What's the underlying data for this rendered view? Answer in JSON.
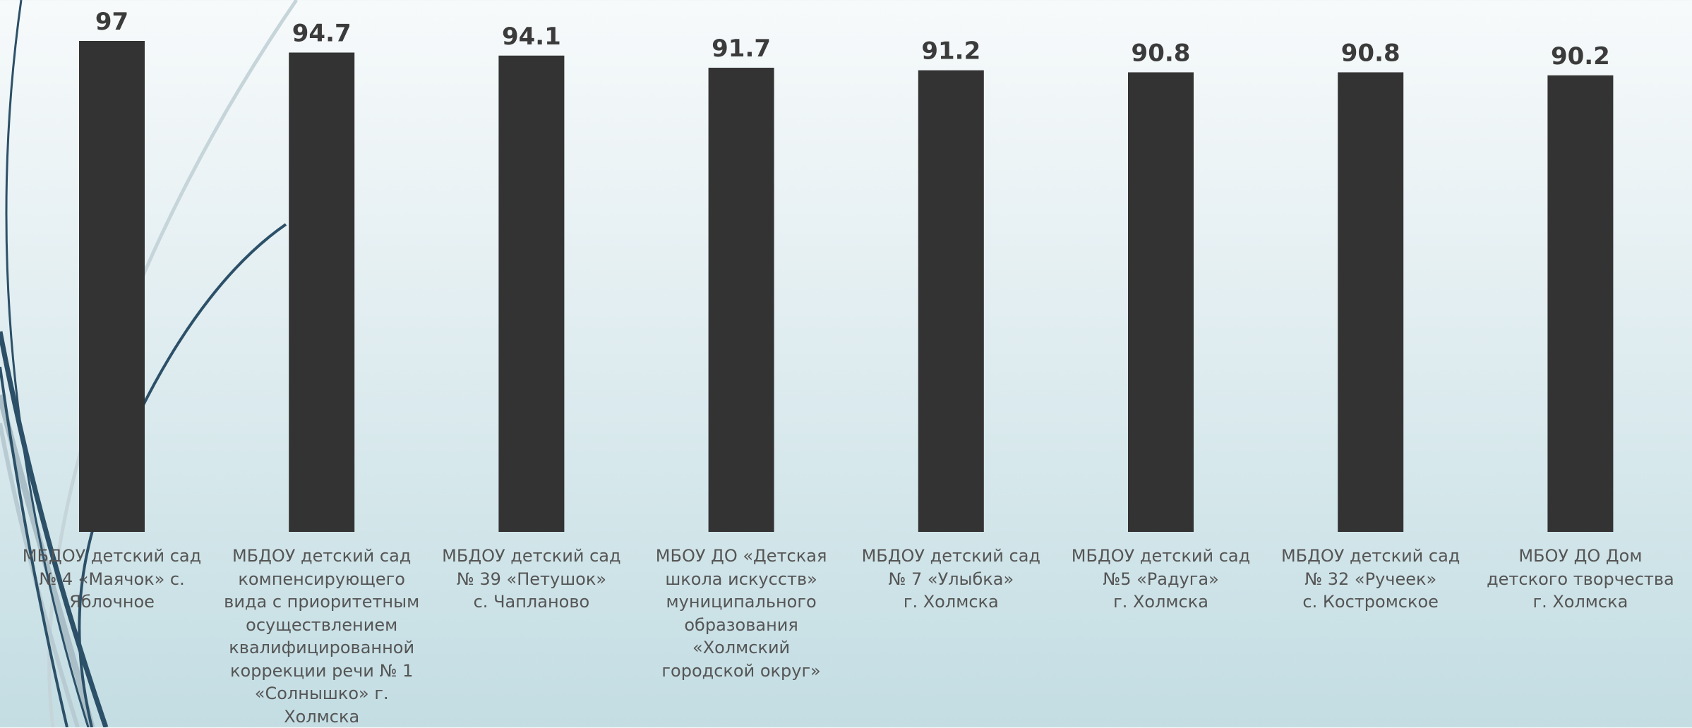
{
  "chart_data": {
    "type": "bar",
    "categories": [
      "МБДОУ детский сад\n№ 4 «Маячок» с.\nЯблочное",
      "МБДОУ детский сад\nкомпенсирующего\nвида с приоритетным\nосуществлением\nквалифицированной\nкоррекции речи № 1\n«Солнышко» г.\nХолмска",
      "МБДОУ детский сад\n№ 39 «Петушок»\nс. Чапланово",
      "МБОУ ДО «Детская\nшкола искусств»\nмуниципального\nобразования\n«Холмский\nгородской округ»",
      "МБДОУ детский сад\n№ 7 «Улыбка»\nг. Холмска",
      "МБДОУ детский сад\n№5 «Радуга»\nг. Холмска",
      "МБДОУ детский сад\n№ 32 «Ручеек»\nс. Костромское",
      "МБОУ ДО Дом\nдетского творчества\nг. Холмска"
    ],
    "values": [
      97,
      94.7,
      94.1,
      91.7,
      91.2,
      90.8,
      90.8,
      90.2
    ],
    "value_labels": [
      "97",
      "94.7",
      "94.1",
      "91.7",
      "91.2",
      "90.8",
      "90.8",
      "90.2"
    ],
    "bar_color": "#333333",
    "label_color": "#555555",
    "data_label_color": "#3b3b3b",
    "ylim": [
      0,
      97
    ],
    "grid": false,
    "legend": "none"
  }
}
